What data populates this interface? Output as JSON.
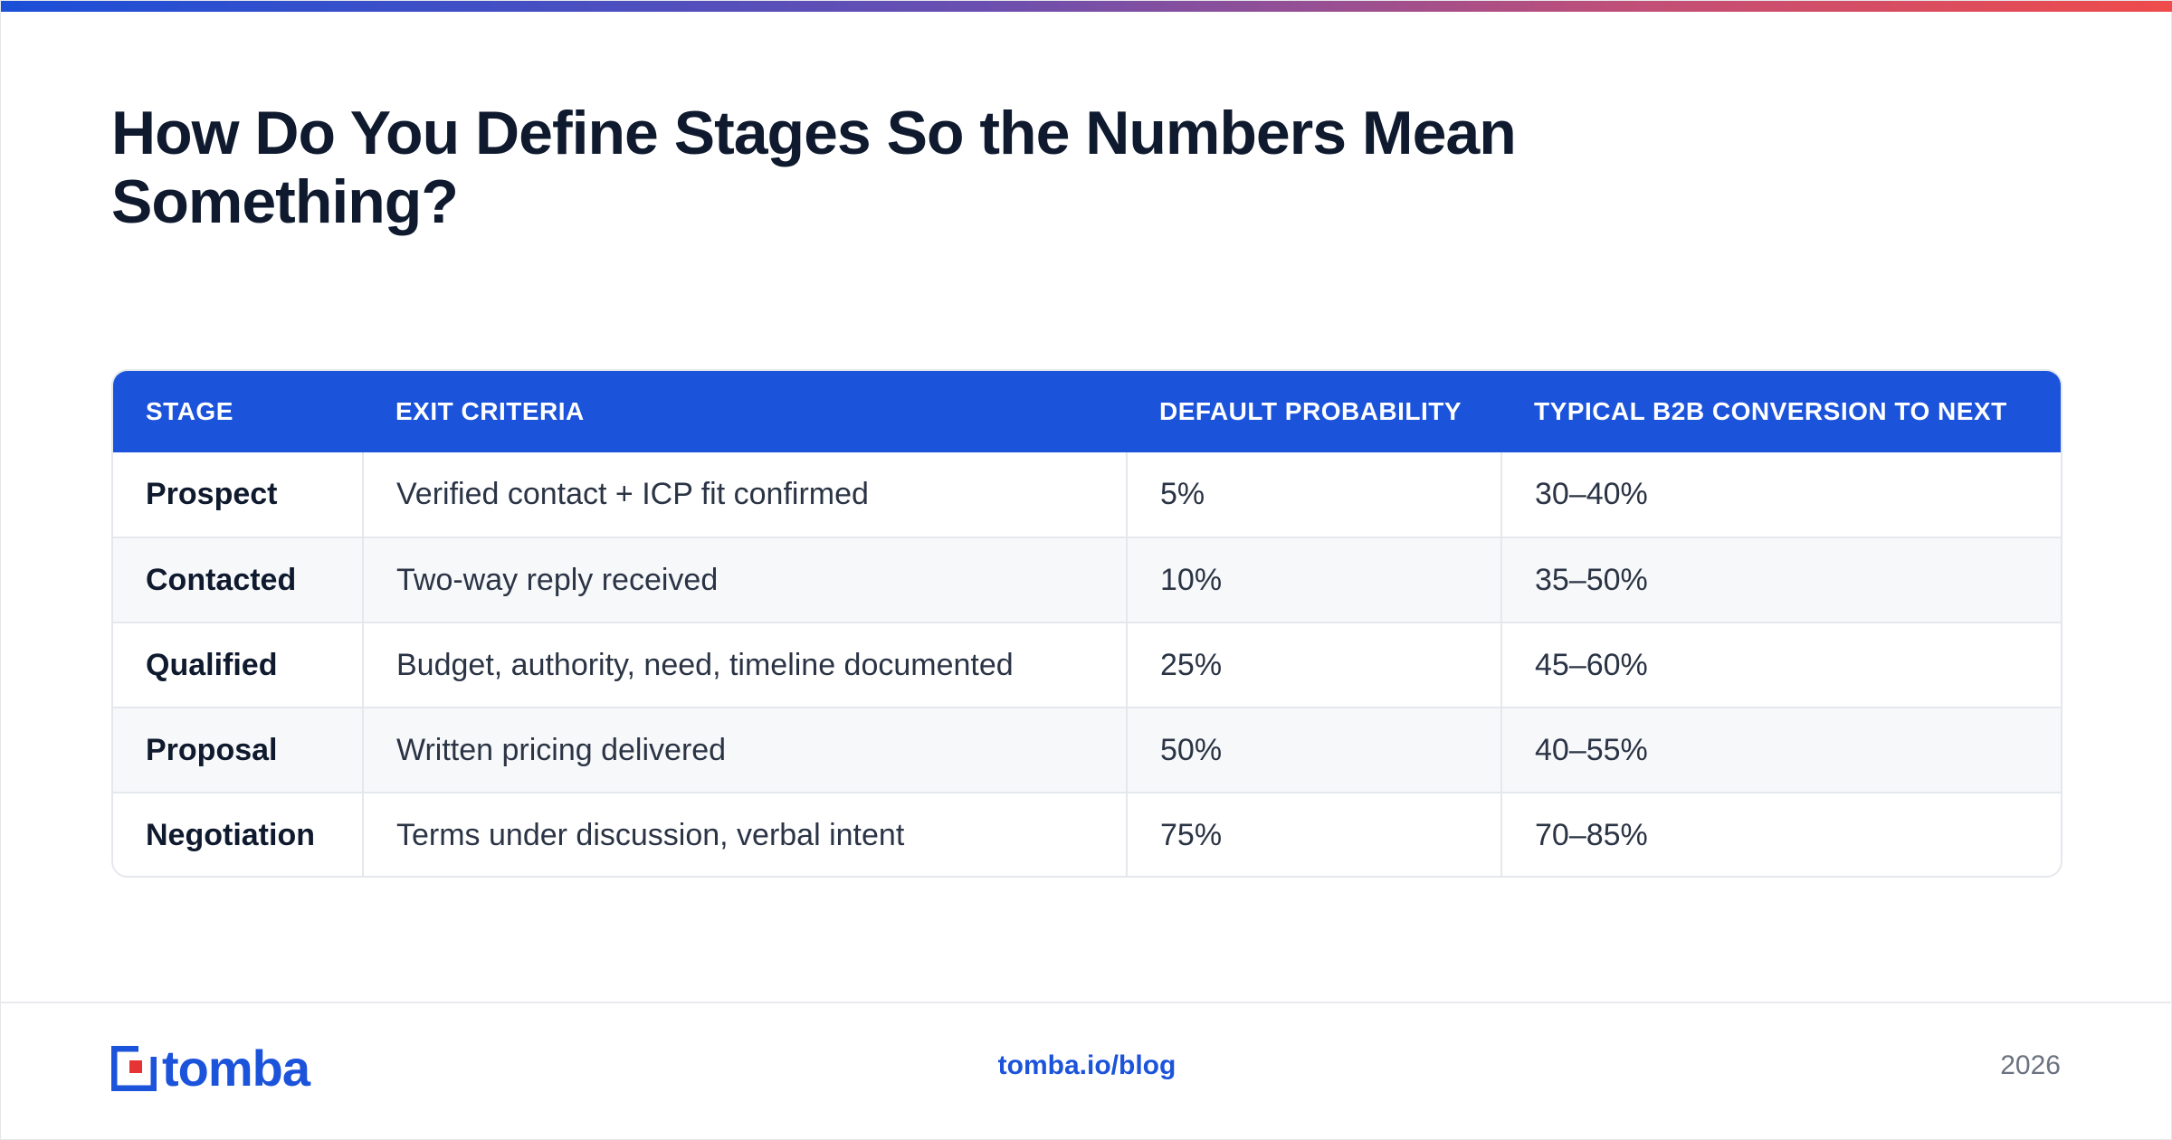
{
  "title": "How Do You Define Stages So the Numbers Mean Something?",
  "colors": {
    "accent": "#1b53db",
    "gradient_start": "#1b4fd8",
    "gradient_end": "#ef4b4b",
    "logo_red": "#e63434"
  },
  "table": {
    "headers": [
      "STAGE",
      "EXIT CRITERIA",
      "DEFAULT PROBABILITY",
      "TYPICAL B2B CONVERSION TO NEXT"
    ],
    "rows": [
      [
        "Prospect",
        "Verified contact + ICP fit confirmed",
        "5%",
        "30–40%"
      ],
      [
        "Contacted",
        "Two-way reply received",
        "10%",
        "35–50%"
      ],
      [
        "Qualified",
        "Budget, authority, need, timeline documented",
        "25%",
        "45–60%"
      ],
      [
        "Proposal",
        "Written pricing delivered",
        "50%",
        "40–55%"
      ],
      [
        "Negotiation",
        "Terms under discussion, verbal intent",
        "75%",
        "70–85%"
      ]
    ]
  },
  "footer": {
    "logo_text": "tomba",
    "logo_icon": "tomba-logo-icon",
    "url": "tomba.io/blog",
    "year": "2026"
  }
}
